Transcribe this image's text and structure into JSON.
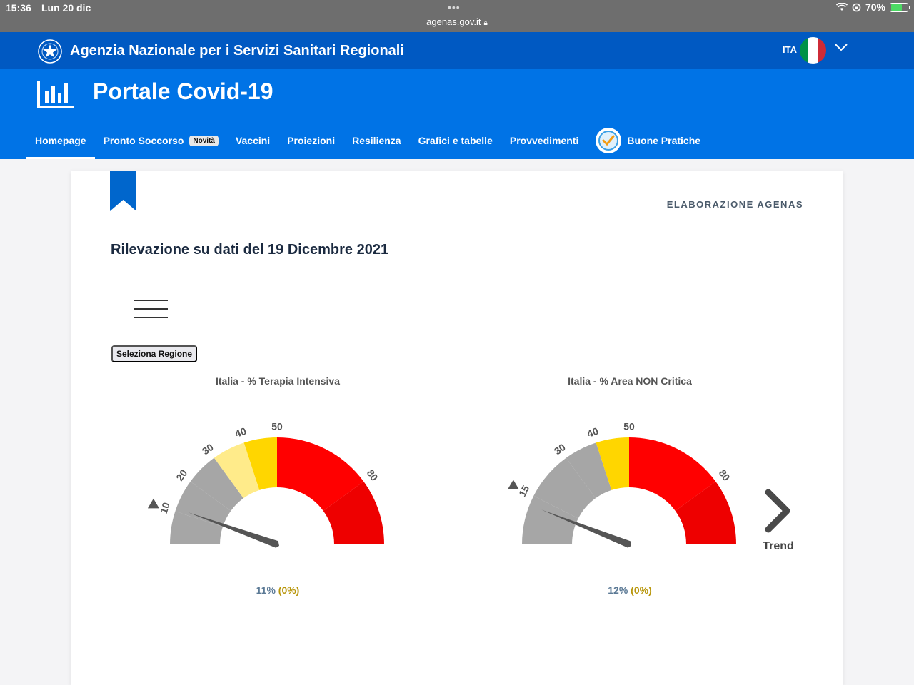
{
  "statusbar": {
    "time": "15:36",
    "date": "Lun 20 dic",
    "dots": "•••",
    "url": "agenas.gov.it",
    "battery": "70%"
  },
  "agency": {
    "name": "Agenzia Nazionale per i Servizi Sanitari Regionali",
    "lang": "ITA",
    "flag_colors": [
      "#009246",
      "#ffffff",
      "#ce2b37"
    ]
  },
  "portal": {
    "title": "Portale Covid-19"
  },
  "nav": {
    "items": [
      {
        "label": "Homepage",
        "active": true
      },
      {
        "label": "Pronto Soccorso",
        "badge": "Novità"
      },
      {
        "label": "Vaccini"
      },
      {
        "label": "Proiezioni"
      },
      {
        "label": "Resilienza"
      },
      {
        "label": "Grafici e tabelle"
      },
      {
        "label": "Provvedimenti"
      },
      {
        "label": "Buone Pratiche",
        "icon": "check-badge-icon"
      }
    ]
  },
  "content": {
    "source": "ELABORAZIONE AGENAS",
    "date_title": "Rilevazione su dati del 19 Dicembre 2021",
    "region_button": "Seleziona Regione",
    "trend_label": "Trend"
  },
  "gauges": [
    {
      "title": "Italia - % Terapia Intensiva",
      "value": 11,
      "value_text": "11%",
      "delta_text": "(0%)",
      "marker": 10,
      "ticks": [
        "10",
        "20",
        "30",
        "40",
        "50",
        "80"
      ],
      "bands": [
        {
          "from": 0,
          "to": 10,
          "color": "#a6a6a6"
        },
        {
          "from": 10,
          "to": 20,
          "color": "#a6a6a6"
        },
        {
          "from": 20,
          "to": 30,
          "color": "#a6a6a6"
        },
        {
          "from": 30,
          "to": 40,
          "color": "#ffeb8a"
        },
        {
          "from": 40,
          "to": 50,
          "color": "#ffd600"
        },
        {
          "from": 50,
          "to": 80,
          "color": "#ff0000"
        },
        {
          "from": 80,
          "to": 100,
          "color": "#ee0000"
        }
      ]
    },
    {
      "title": "Italia - % Area NON Critica",
      "value": 12,
      "value_text": "12%",
      "delta_text": "(0%)",
      "marker": 15,
      "ticks": [
        "15",
        "30",
        "40",
        "50",
        "80"
      ],
      "bands": [
        {
          "from": 0,
          "to": 15,
          "color": "#a6a6a6"
        },
        {
          "from": 15,
          "to": 30,
          "color": "#a6a6a6"
        },
        {
          "from": 30,
          "to": 40,
          "color": "#a6a6a6"
        },
        {
          "from": 40,
          "to": 50,
          "color": "#ffd600"
        },
        {
          "from": 50,
          "to": 80,
          "color": "#ff0000"
        },
        {
          "from": 80,
          "to": 100,
          "color": "#ee0000"
        }
      ]
    }
  ]
}
